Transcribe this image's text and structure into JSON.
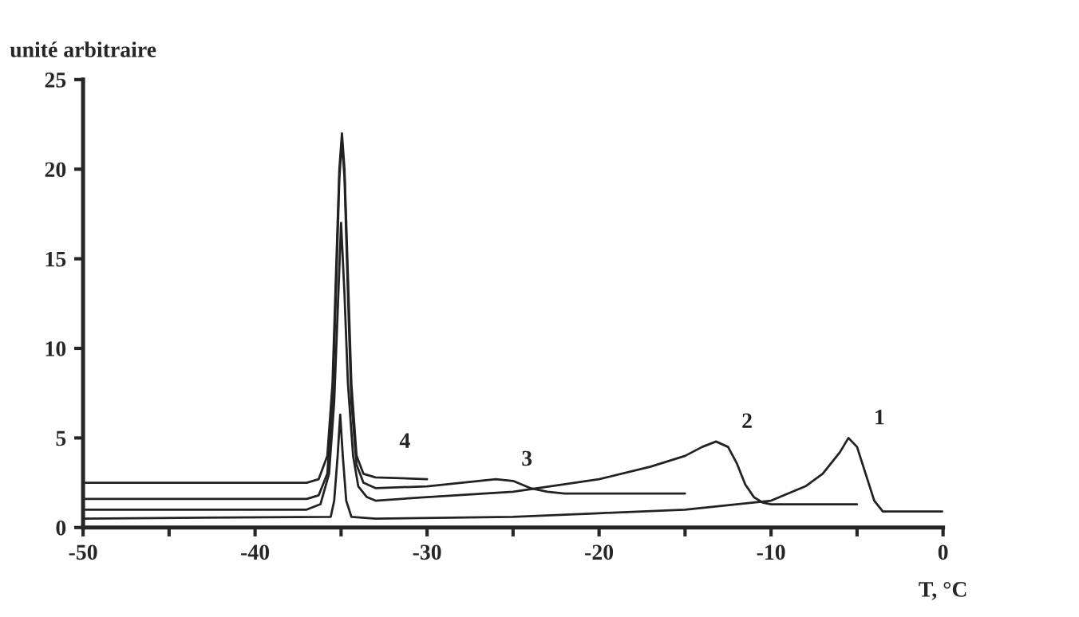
{
  "chart_data": {
    "type": "line",
    "ylabel": "unité arbitraire",
    "xlabel": "T, °C",
    "xlim": [
      -50,
      0
    ],
    "xticks": [
      -50,
      {
        "value": -45,
        "label": null
      },
      -40,
      {
        "value": -35,
        "label": null
      },
      -30,
      {
        "value": -25,
        "label": null
      },
      -20,
      {
        "value": -15,
        "label": null
      },
      -10,
      {
        "value": -5,
        "label": null
      },
      0
    ],
    "ylim": [
      0,
      25
    ],
    "yticks": [
      0,
      5,
      10,
      15,
      20,
      25
    ],
    "grid": false,
    "legend": false,
    "marker": "none",
    "line_style": "solid",
    "series": [
      {
        "name": "4",
        "color": "#222222",
        "x": [
          -50,
          -37,
          -36.3,
          -35.8,
          -35.5,
          -35.3,
          -35.1,
          -34.95,
          -34.8,
          -34.6,
          -34.4,
          -34.1,
          -33.7,
          -33,
          -30
        ],
        "values": [
          2.5,
          2.5,
          2.7,
          4,
          8,
          14,
          20,
          22,
          20,
          14,
          8,
          4,
          3,
          2.8,
          2.7
        ]
      },
      {
        "name": "3",
        "color": "#222222",
        "x": [
          -50,
          -37,
          -36.3,
          -35.8,
          -35.5,
          -35.3,
          -35.1,
          -34.95,
          -34.8,
          -34.6,
          -34.4,
          -34.1,
          -33.7,
          -33,
          -30,
          -28,
          -26,
          -25,
          -24,
          -23,
          -22,
          -15
        ],
        "values": [
          1.6,
          1.6,
          1.8,
          3,
          7,
          13,
          19.5,
          21.6,
          19.5,
          13,
          7,
          3.5,
          2.5,
          2.2,
          2.3,
          2.5,
          2.7,
          2.6,
          2.2,
          2.0,
          1.9,
          1.9
        ]
      },
      {
        "name": "2",
        "color": "#222222",
        "x": [
          -50,
          -37,
          -36.2,
          -35.7,
          -35.4,
          -35.2,
          -35.0,
          -34.8,
          -34.6,
          -34.3,
          -34.0,
          -33.5,
          -33,
          -30,
          -25,
          -20,
          -17,
          -15,
          -14,
          -13.2,
          -12.5,
          -12,
          -11.5,
          -11,
          -10.5,
          -10,
          -5
        ],
        "values": [
          1.0,
          1.0,
          1.3,
          3,
          7,
          12,
          17,
          13,
          8,
          4,
          2.3,
          1.7,
          1.5,
          1.7,
          2.0,
          2.7,
          3.4,
          4.0,
          4.5,
          4.8,
          4.5,
          3.6,
          2.4,
          1.7,
          1.4,
          1.3,
          1.3
        ]
      },
      {
        "name": "1",
        "color": "#222222",
        "x": [
          -50,
          -35.6,
          -35.4,
          -35.2,
          -35.05,
          -34.9,
          -34.7,
          -34.4,
          -33,
          -25,
          -20,
          -15,
          -10,
          -8,
          -7,
          -6,
          -5.5,
          -5,
          -4.5,
          -4,
          -3.5,
          -3,
          0
        ],
        "values": [
          0.5,
          0.6,
          1.5,
          4,
          6.3,
          4,
          1.5,
          0.6,
          0.5,
          0.6,
          0.8,
          1.0,
          1.5,
          2.3,
          3.0,
          4.2,
          5.0,
          4.5,
          3.0,
          1.5,
          0.9,
          0.9,
          0.9
        ]
      }
    ]
  }
}
